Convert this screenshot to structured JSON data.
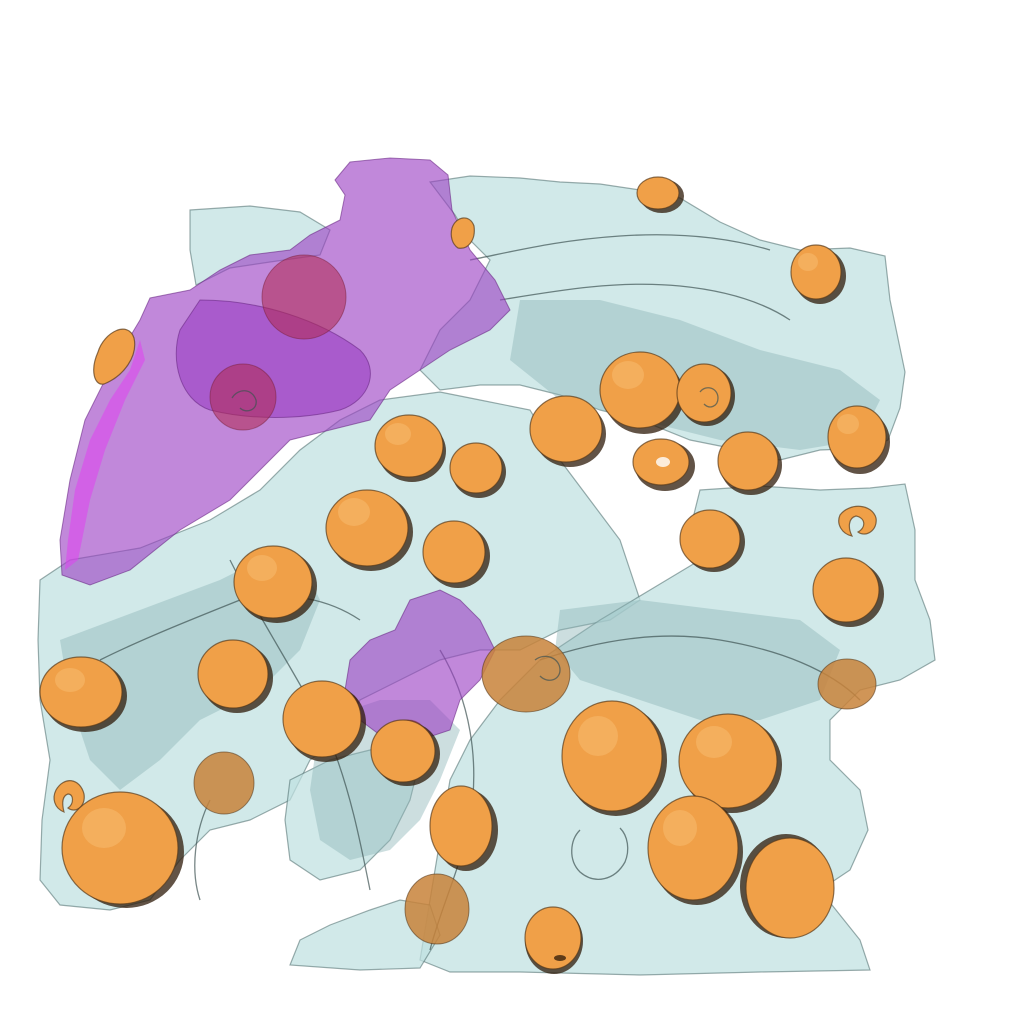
{
  "scene": {
    "palette": {
      "background": "#ffffff",
      "membrane": "#bfe0e0",
      "membrane_dark": "#8fb6b8",
      "organelle_purple": "#9b3fc4",
      "organelle_magenta": "#e042f0",
      "inclusion_red": "#b02850",
      "granule_orange": "#f0a048"
    },
    "layers": [
      "membrane-sheets",
      "purple-organelle",
      "orange-granules"
    ]
  }
}
